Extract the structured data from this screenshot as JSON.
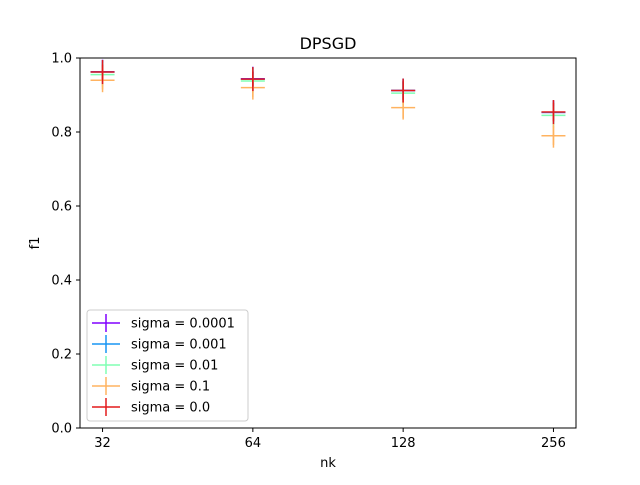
{
  "chart_data": {
    "type": "scatter",
    "title": "DPSGD",
    "xlabel": "nk",
    "ylabel": "f1",
    "categories": [
      "32",
      "64",
      "128",
      "256"
    ],
    "xlim": [
      -0.15,
      3.15
    ],
    "ylim": [
      0.0,
      1.0
    ],
    "yticks": [
      "0.0",
      "0.2",
      "0.4",
      "0.6",
      "0.8",
      "1.0"
    ],
    "grid": false,
    "legend_position": "lower-left",
    "markers": "plus markers with vertical error bars",
    "series": [
      {
        "name": "sigma = 0.0001",
        "color": "#8000ff",
        "values": [
          0.963,
          0.944,
          0.912,
          0.853
        ],
        "errors": [
          0.025,
          0.02,
          0.025,
          0.025
        ]
      },
      {
        "name": "sigma = 0.001",
        "color": "#1996f3",
        "values": [
          0.962,
          0.943,
          0.912,
          0.853
        ],
        "errors": [
          0.025,
          0.02,
          0.025,
          0.025
        ]
      },
      {
        "name": "sigma = 0.01",
        "color": "#80ffb4",
        "values": [
          0.955,
          0.938,
          0.905,
          0.845
        ],
        "errors": [
          0.025,
          0.02,
          0.025,
          0.025
        ]
      },
      {
        "name": "sigma = 0.1",
        "color": "#ffb360",
        "values": [
          0.94,
          0.92,
          0.866,
          0.79
        ],
        "errors": [
          0.025,
          0.025,
          0.028,
          0.025
        ]
      },
      {
        "name": "sigma = 0.0",
        "color": "#e31a1c",
        "values": [
          0.962,
          0.943,
          0.912,
          0.854
        ],
        "errors": [
          0.02,
          0.02,
          0.025,
          0.025
        ]
      }
    ]
  }
}
